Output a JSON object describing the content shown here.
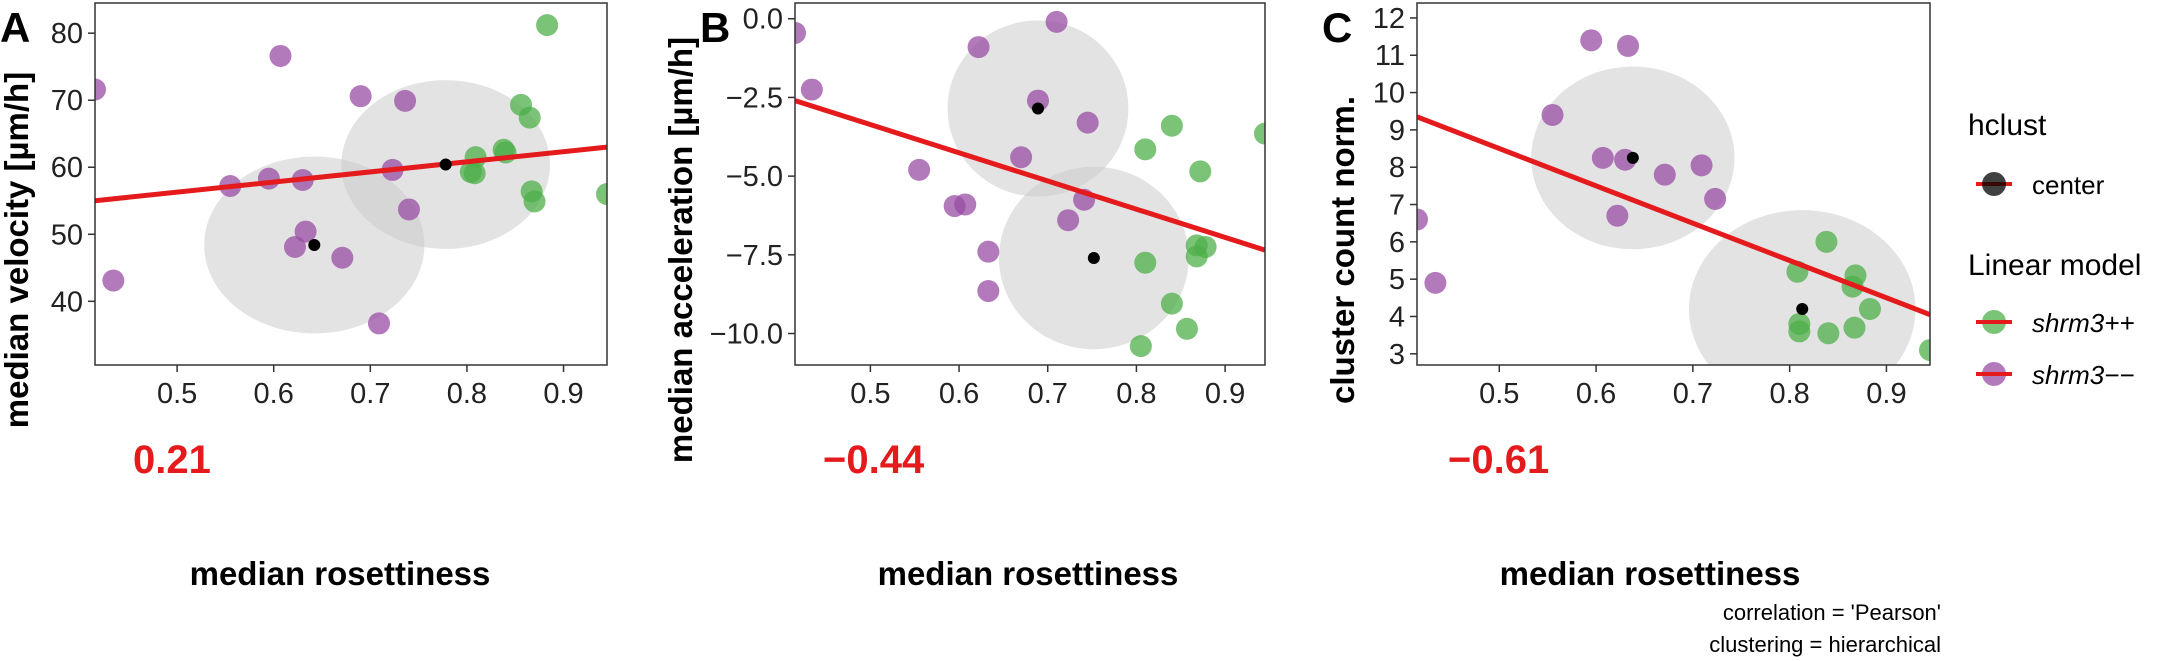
{
  "chart_data": [
    {
      "type": "scatter",
      "panel": "A",
      "xlabel": "median rosettiness",
      "ylabel": "median velocity [µm/h]",
      "xlim": [
        0.415,
        0.945
      ],
      "ylim": [
        30.5,
        84.5
      ],
      "xticks": [
        0.5,
        0.6,
        0.7,
        0.8,
        0.9
      ],
      "yticks": [
        40,
        50,
        60,
        70,
        80
      ],
      "correlation_label": "0.21",
      "series": [
        {
          "name": "shrm3++",
          "color": "#4daf4a",
          "points": [
            [
              0.883,
              81.2
            ],
            [
              0.856,
              69.3
            ],
            [
              0.865,
              67.4
            ],
            [
              0.838,
              62.6
            ],
            [
              0.84,
              62.2
            ],
            [
              0.809,
              61.5
            ],
            [
              0.804,
              59.3
            ],
            [
              0.808,
              59.1
            ],
            [
              0.867,
              56.4
            ],
            [
              0.87,
              54.9
            ],
            [
              0.945,
              56.0
            ]
          ]
        },
        {
          "name": "shrm3--",
          "color": "#984ea3",
          "points": [
            [
              0.415,
              71.6
            ],
            [
              0.607,
              76.6
            ],
            [
              0.69,
              70.6
            ],
            [
              0.736,
              69.9
            ],
            [
              0.555,
              57.2
            ],
            [
              0.595,
              58.3
            ],
            [
              0.63,
              58.1
            ],
            [
              0.723,
              59.6
            ],
            [
              0.74,
              53.7
            ],
            [
              0.633,
              50.4
            ],
            [
              0.622,
              48.1
            ],
            [
              0.671,
              46.5
            ],
            [
              0.434,
              43.1
            ],
            [
              0.709,
              36.7
            ]
          ]
        }
      ],
      "centers": [
        [
          0.642,
          48.4
        ],
        [
          0.778,
          60.4
        ]
      ],
      "circles": [
        {
          "cx": 0.642,
          "cy": 48.4,
          "rx": 0.114,
          "ry": 13.2
        },
        {
          "cx": 0.778,
          "cy": 60.4,
          "rx": 0.108,
          "ry": 12.6
        }
      ],
      "fit": {
        "x1": 0.415,
        "y1": 55.0,
        "x2": 0.945,
        "y2": 63.0
      }
    },
    {
      "type": "scatter",
      "panel": "B",
      "xlabel": "median rosettiness",
      "ylabel": "median acceleration [µm/h]",
      "xlim": [
        0.415,
        0.945
      ],
      "ylim": [
        -11.0,
        0.5
      ],
      "xticks": [
        0.5,
        0.6,
        0.7,
        0.8,
        0.9
      ],
      "yticks": [
        0.0,
        -2.5,
        -5.0,
        -7.5,
        -10.0
      ],
      "yticklabels": [
        "0.0",
        "−2.5",
        "−5.0",
        "−7.5",
        "−10.0"
      ],
      "correlation_label": "−0.44",
      "series": [
        {
          "name": "shrm3++",
          "color": "#4daf4a",
          "points": [
            [
              0.945,
              -3.65
            ],
            [
              0.84,
              -3.4
            ],
            [
              0.81,
              -4.15
            ],
            [
              0.872,
              -4.85
            ],
            [
              0.868,
              -7.2
            ],
            [
              0.878,
              -7.25
            ],
            [
              0.868,
              -7.55
            ],
            [
              0.81,
              -7.75
            ],
            [
              0.84,
              -9.05
            ],
            [
              0.857,
              -9.85
            ],
            [
              0.805,
              -10.4
            ]
          ]
        },
        {
          "name": "shrm3--",
          "color": "#984ea3",
          "points": [
            [
              0.415,
              -0.45
            ],
            [
              0.71,
              -0.1
            ],
            [
              0.622,
              -0.9
            ],
            [
              0.434,
              -2.25
            ],
            [
              0.689,
              -2.6
            ],
            [
              0.745,
              -3.3
            ],
            [
              0.67,
              -4.4
            ],
            [
              0.555,
              -4.8
            ],
            [
              0.595,
              -5.95
            ],
            [
              0.607,
              -5.9
            ],
            [
              0.741,
              -5.75
            ],
            [
              0.723,
              -6.4
            ],
            [
              0.633,
              -7.4
            ],
            [
              0.633,
              -8.65
            ]
          ]
        }
      ],
      "centers": [
        [
          0.689,
          -2.85
        ],
        [
          0.752,
          -7.6
        ]
      ],
      "circles": [
        {
          "cx": 0.689,
          "cy": -2.85,
          "rx": 0.102,
          "ry": 2.8
        },
        {
          "cx": 0.752,
          "cy": -7.6,
          "rx": 0.107,
          "ry": 2.9
        }
      ],
      "fit": {
        "x1": 0.415,
        "y1": -2.6,
        "x2": 0.945,
        "y2": -7.35
      }
    },
    {
      "type": "scatter",
      "panel": "C",
      "xlabel": "median rosettiness",
      "ylabel": "cluster count norm.",
      "xlim": [
        0.415,
        0.945
      ],
      "ylim": [
        2.7,
        12.4
      ],
      "xticks": [
        0.5,
        0.6,
        0.7,
        0.8,
        0.9
      ],
      "yticks": [
        3,
        4,
        5,
        6,
        7,
        8,
        9,
        10,
        11,
        12
      ],
      "correlation_label": "−0.61",
      "series": [
        {
          "name": "shrm3++",
          "color": "#4daf4a",
          "points": [
            [
              0.838,
              6.0
            ],
            [
              0.808,
              5.2
            ],
            [
              0.868,
              5.1
            ],
            [
              0.865,
              4.8
            ],
            [
              0.883,
              4.2
            ],
            [
              0.81,
              3.8
            ],
            [
              0.81,
              3.6
            ],
            [
              0.84,
              3.55
            ],
            [
              0.867,
              3.7
            ],
            [
              0.945,
              3.1
            ]
          ]
        },
        {
          "name": "shrm3--",
          "color": "#984ea3",
          "points": [
            [
              0.595,
              11.4
            ],
            [
              0.633,
              11.25
            ],
            [
              0.555,
              9.4
            ],
            [
              0.607,
              8.25
            ],
            [
              0.63,
              8.2
            ],
            [
              0.709,
              8.05
            ],
            [
              0.671,
              7.8
            ],
            [
              0.723,
              7.15
            ],
            [
              0.622,
              6.7
            ],
            [
              0.415,
              6.6
            ],
            [
              0.434,
              4.9
            ]
          ]
        }
      ],
      "centers": [
        [
          0.638,
          8.25
        ],
        [
          0.813,
          4.2
        ]
      ],
      "circles": [
        {
          "cx": 0.638,
          "cy": 8.25,
          "rx": 0.105,
          "ry": 2.45
        },
        {
          "cx": 0.813,
          "cy": 4.2,
          "rx": 0.117,
          "ry": 2.65
        }
      ],
      "fit": {
        "x1": 0.415,
        "y1": 9.35,
        "x2": 0.945,
        "y2": 4.05
      }
    }
  ],
  "legend": {
    "hclust_title": "hclust",
    "center_label": "center",
    "model_title": "Linear model",
    "items": [
      {
        "label": "shrm3++",
        "color": "#4daf4a"
      },
      {
        "label": "shrm3−−",
        "color": "#984ea3"
      }
    ]
  },
  "colors": {
    "fit_line": "#e41a1c",
    "circle_fill": "#cccccc",
    "center": "#000000"
  },
  "caption": {
    "line1": "correlation = 'Pearson'",
    "line2": "clustering = hierarchical"
  }
}
